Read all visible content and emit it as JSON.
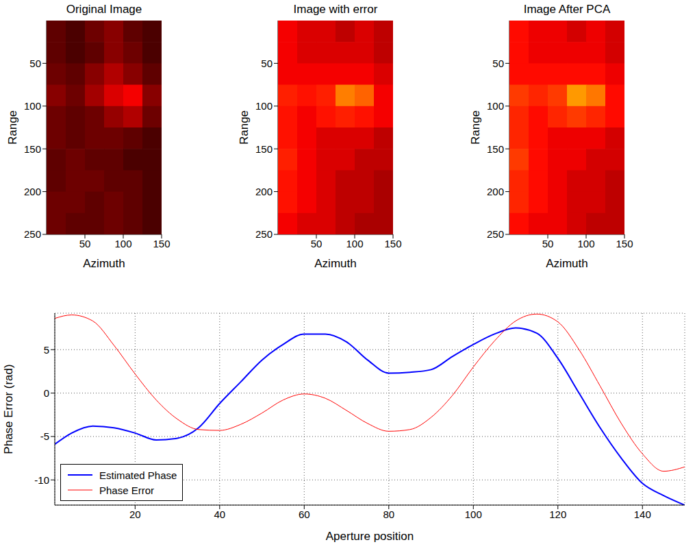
{
  "chart_data": [
    {
      "type": "heatmap",
      "title": "Original Image",
      "x_label": "Azimuth",
      "y_label": "Range",
      "x": [
        12.5,
        37.5,
        62.5,
        87.5,
        112.5,
        137.5
      ],
      "y": [
        12.5,
        37.5,
        62.5,
        87.5,
        112.5,
        137.5,
        162.5,
        187.5,
        212.5,
        237.5
      ],
      "cells": [
        [
          0.14,
          0.11,
          0.16,
          0.2,
          0.14,
          0.11
        ],
        [
          0.14,
          0.11,
          0.14,
          0.2,
          0.16,
          0.11
        ],
        [
          0.16,
          0.14,
          0.2,
          0.26,
          0.2,
          0.14
        ],
        [
          0.2,
          0.16,
          0.24,
          0.32,
          0.36,
          0.2
        ],
        [
          0.16,
          0.14,
          0.16,
          0.22,
          0.26,
          0.16
        ],
        [
          0.16,
          0.14,
          0.16,
          0.16,
          0.14,
          0.11
        ],
        [
          0.14,
          0.16,
          0.14,
          0.14,
          0.11,
          0.11
        ],
        [
          0.14,
          0.16,
          0.16,
          0.14,
          0.14,
          0.11
        ],
        [
          0.16,
          0.16,
          0.14,
          0.16,
          0.14,
          0.11
        ],
        [
          0.16,
          0.14,
          0.14,
          0.16,
          0.14,
          0.11
        ]
      ],
      "zlim": [
        0,
        1
      ],
      "color": "hot",
      "xlim": [
        0,
        150
      ],
      "xticks": [
        50,
        100,
        150
      ],
      "ylim": [
        0,
        250
      ],
      "yticks": [
        50,
        100,
        150,
        200,
        250
      ]
    },
    {
      "type": "heatmap",
      "title": "Image with error",
      "x_label": "Azimuth",
      "y_label": "Range",
      "x": [
        12.5,
        37.5,
        62.5,
        87.5,
        112.5,
        137.5
      ],
      "y": [
        12.5,
        37.5,
        62.5,
        87.5,
        112.5,
        137.5,
        162.5,
        187.5,
        212.5,
        237.5
      ],
      "cells": [
        [
          0.36,
          0.32,
          0.32,
          0.28,
          0.32,
          0.28
        ],
        [
          0.36,
          0.32,
          0.32,
          0.32,
          0.32,
          0.28
        ],
        [
          0.36,
          0.36,
          0.36,
          0.36,
          0.36,
          0.32
        ],
        [
          0.42,
          0.4,
          0.42,
          0.56,
          0.52,
          0.36
        ],
        [
          0.4,
          0.36,
          0.4,
          0.42,
          0.4,
          0.36
        ],
        [
          0.4,
          0.36,
          0.32,
          0.32,
          0.32,
          0.28
        ],
        [
          0.42,
          0.36,
          0.32,
          0.32,
          0.28,
          0.28
        ],
        [
          0.4,
          0.36,
          0.32,
          0.28,
          0.28,
          0.25
        ],
        [
          0.4,
          0.36,
          0.32,
          0.28,
          0.28,
          0.25
        ],
        [
          0.36,
          0.32,
          0.32,
          0.28,
          0.25,
          0.25
        ]
      ],
      "zlim": [
        0,
        1
      ],
      "color": "hot",
      "xlim": [
        0,
        150
      ],
      "xticks": [
        50,
        100,
        150
      ],
      "ylim": [
        0,
        250
      ],
      "yticks": [
        50,
        100,
        150,
        200,
        250
      ]
    },
    {
      "type": "heatmap",
      "title": "Image After PCA",
      "x_label": "Azimuth",
      "y_label": "Range",
      "x": [
        12.5,
        37.5,
        62.5,
        87.5,
        112.5,
        137.5
      ],
      "y": [
        12.5,
        37.5,
        62.5,
        87.5,
        112.5,
        137.5,
        162.5,
        187.5,
        212.5,
        237.5
      ],
      "cells": [
        [
          0.39,
          0.35,
          0.35,
          0.31,
          0.35,
          0.31
        ],
        [
          0.39,
          0.35,
          0.35,
          0.35,
          0.35,
          0.31
        ],
        [
          0.39,
          0.39,
          0.39,
          0.39,
          0.39,
          0.35
        ],
        [
          0.46,
          0.43,
          0.46,
          0.6,
          0.55,
          0.39
        ],
        [
          0.43,
          0.39,
          0.43,
          0.46,
          0.43,
          0.39
        ],
        [
          0.43,
          0.39,
          0.35,
          0.35,
          0.35,
          0.31
        ],
        [
          0.46,
          0.39,
          0.35,
          0.35,
          0.31,
          0.31
        ],
        [
          0.43,
          0.39,
          0.35,
          0.31,
          0.31,
          0.28
        ],
        [
          0.43,
          0.39,
          0.35,
          0.31,
          0.31,
          0.28
        ],
        [
          0.39,
          0.35,
          0.35,
          0.31,
          0.28,
          0.28
        ]
      ],
      "zlim": [
        0,
        1
      ],
      "color": "hot",
      "xlim": [
        0,
        150
      ],
      "xticks": [
        50,
        100,
        150
      ],
      "ylim": [
        0,
        250
      ],
      "yticks": [
        50,
        100,
        150,
        200,
        250
      ]
    },
    {
      "type": "line",
      "x_label": "Aperture position",
      "y_label": "Phase Error (rad)",
      "x": [
        1,
        5,
        10,
        15,
        20,
        25,
        30,
        35,
        40,
        45,
        50,
        55,
        60,
        65,
        70,
        75,
        80,
        85,
        90,
        95,
        100,
        105,
        110,
        115,
        120,
        125,
        130,
        135,
        140,
        145,
        150
      ],
      "series": [
        {
          "name": "Estimated Phase",
          "color": "#0000ff",
          "values": [
            -5.9,
            -4.6,
            -3.8,
            -4.0,
            -4.6,
            -5.4,
            -5.2,
            -4.0,
            -1.2,
            1.3,
            3.8,
            5.6,
            6.8,
            6.8,
            5.9,
            3.8,
            2.3,
            2.4,
            2.7,
            4.2,
            5.6,
            6.8,
            7.5,
            6.9,
            4.0,
            0.0,
            -4.0,
            -7.5,
            -10.4,
            -11.8,
            -12.9
          ]
        },
        {
          "name": "Phase Error",
          "color": "#ff0000",
          "values": [
            8.6,
            9.0,
            8.3,
            5.5,
            2.2,
            -0.8,
            -3.0,
            -4.2,
            -4.3,
            -3.6,
            -2.3,
            -0.8,
            -0.1,
            -0.6,
            -2.0,
            -3.5,
            -4.4,
            -4.2,
            -2.8,
            -0.3,
            3.0,
            6.0,
            8.3,
            9.1,
            8.2,
            5.0,
            0.8,
            -3.5,
            -7.0,
            -9.0,
            -8.5
          ]
        }
      ],
      "xlim": [
        1,
        150
      ],
      "xticks": [
        20,
        40,
        60,
        80,
        100,
        120,
        140
      ],
      "ylim": [
        -12.9,
        9.2
      ],
      "yticks": [
        -10,
        -5,
        0,
        5
      ],
      "grid": true,
      "legend": "lower left"
    }
  ]
}
